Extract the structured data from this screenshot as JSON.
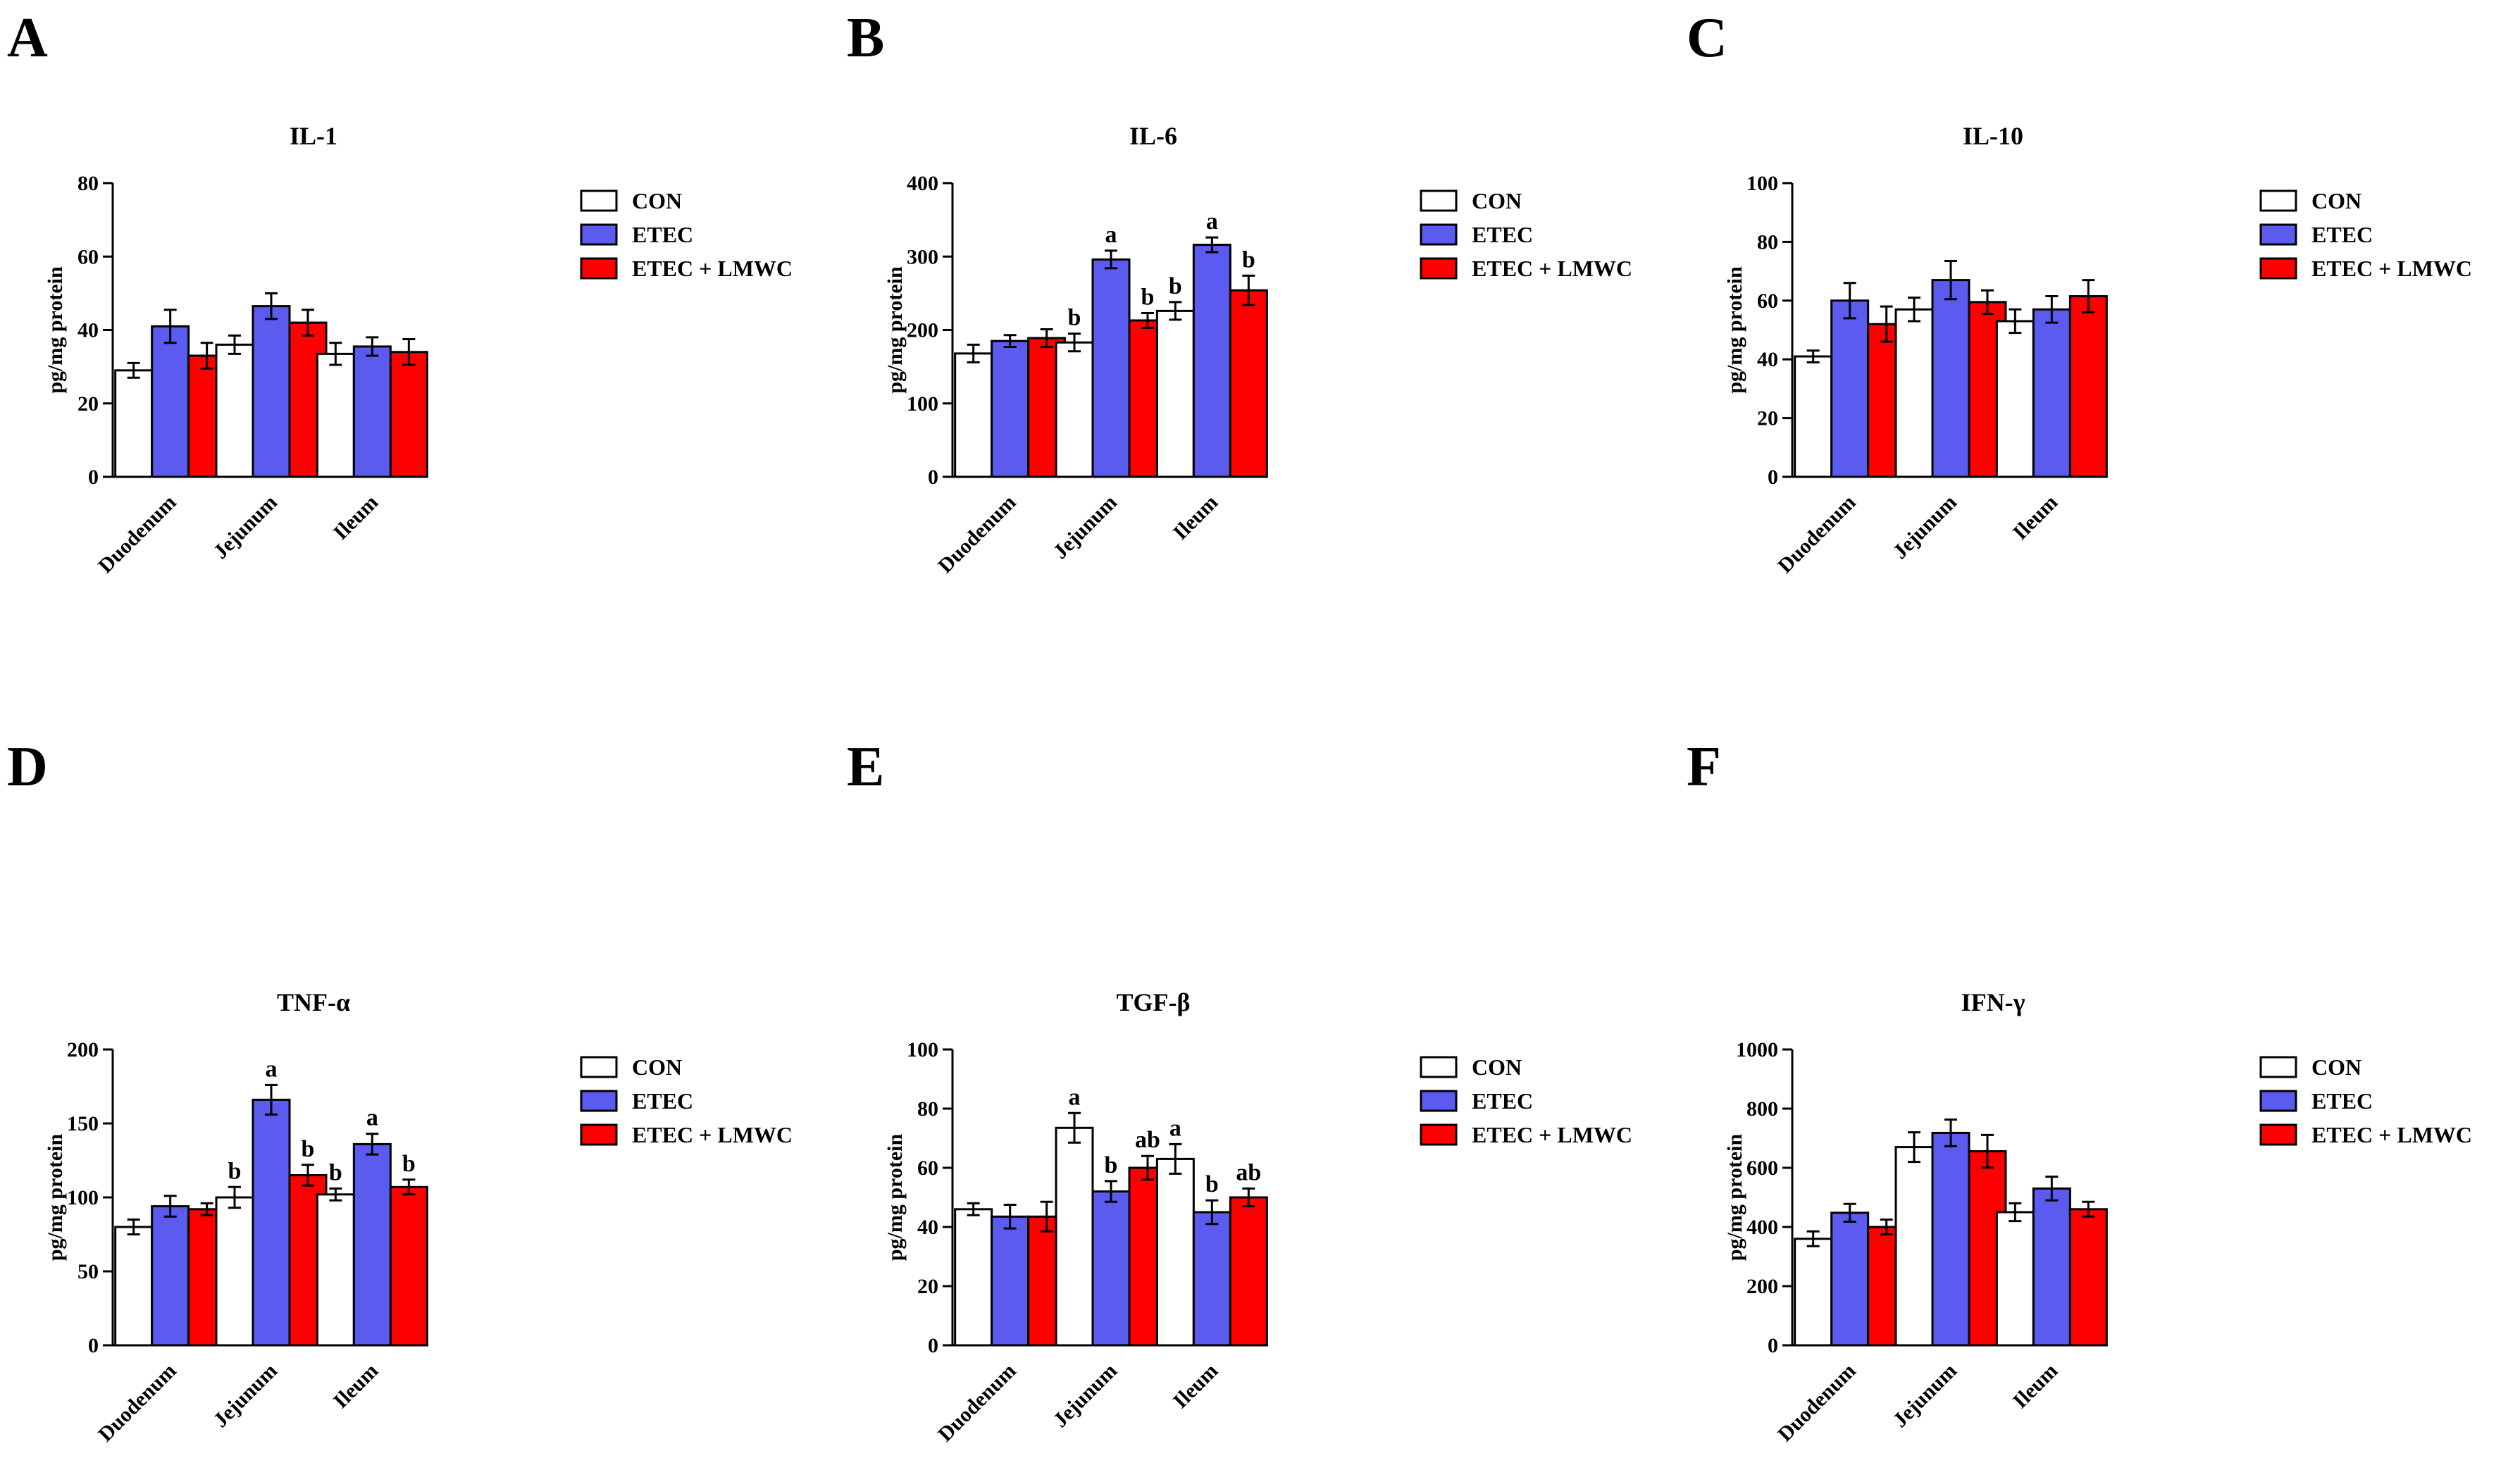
{
  "panels": [
    {
      "letter": "A"
    },
    {
      "letter": "B"
    },
    {
      "letter": "C"
    },
    {
      "letter": "D"
    },
    {
      "letter": "E"
    },
    {
      "letter": "F"
    }
  ],
  "legend": [
    "CON",
    "ETEC",
    "ETEC + LMWC"
  ],
  "colors": {
    "CON": "#ffffff",
    "ETEC": "#5b5bf0",
    "ETEC + LMWC": "#ff0000",
    "stroke": "#000000"
  },
  "chart_data": [
    {
      "type": "bar",
      "title": "IL-1",
      "ylabel": "pg/mg protein",
      "categories": [
        "Duodenum",
        "Jejunum",
        "Ileum"
      ],
      "ylim": [
        0,
        80
      ],
      "yticks": [
        0,
        20,
        40,
        60,
        80
      ],
      "series": [
        {
          "name": "CON",
          "values": [
            29,
            36,
            33.5
          ],
          "errors": [
            2,
            2.5,
            3
          ],
          "labels": [
            "",
            "",
            ""
          ]
        },
        {
          "name": "ETEC",
          "values": [
            41,
            46.5,
            35.5
          ],
          "errors": [
            4.5,
            3.5,
            2.5
          ],
          "labels": [
            "",
            "",
            ""
          ]
        },
        {
          "name": "ETEC + LMWC",
          "values": [
            33,
            42,
            34
          ],
          "errors": [
            3.5,
            3.5,
            3.5
          ],
          "labels": [
            "",
            "",
            ""
          ]
        }
      ]
    },
    {
      "type": "bar",
      "title": "IL-6",
      "ylabel": "pg/mg protein",
      "categories": [
        "Duodenum",
        "Jejunum",
        "Ileum"
      ],
      "ylim": [
        0,
        400
      ],
      "yticks": [
        0,
        100,
        200,
        300,
        400
      ],
      "series": [
        {
          "name": "CON",
          "values": [
            168,
            183,
            226
          ],
          "errors": [
            12,
            12,
            12
          ],
          "labels": [
            "",
            "b",
            "b"
          ]
        },
        {
          "name": "ETEC",
          "values": [
            185,
            296,
            316
          ],
          "errors": [
            8,
            12,
            10
          ],
          "labels": [
            "",
            "a",
            "a"
          ]
        },
        {
          "name": "ETEC + LMWC",
          "values": [
            189,
            213,
            254
          ],
          "errors": [
            12,
            10,
            20
          ],
          "labels": [
            "",
            "b",
            "b"
          ]
        }
      ]
    },
    {
      "type": "bar",
      "title": "IL-10",
      "ylabel": "pg/mg protein",
      "categories": [
        "Duodenum",
        "Jejunum",
        "Ileum"
      ],
      "ylim": [
        0,
        100
      ],
      "yticks": [
        0,
        20,
        40,
        60,
        80,
        100
      ],
      "series": [
        {
          "name": "CON",
          "values": [
            41,
            57,
            53
          ],
          "errors": [
            2,
            4,
            4
          ],
          "labels": [
            "",
            "",
            ""
          ]
        },
        {
          "name": "ETEC",
          "values": [
            60,
            67,
            57
          ],
          "errors": [
            6,
            6.5,
            4.5
          ],
          "labels": [
            "",
            "",
            ""
          ]
        },
        {
          "name": "ETEC + LMWC",
          "values": [
            52,
            59.5,
            61.5
          ],
          "errors": [
            6,
            4,
            5.5
          ],
          "labels": [
            "",
            "",
            ""
          ]
        }
      ]
    },
    {
      "type": "bar",
      "title": "TNF-α",
      "ylabel": "pg/mg protein",
      "categories": [
        "Duodenum",
        "Jejunum",
        "Ileum"
      ],
      "ylim": [
        0,
        200
      ],
      "yticks": [
        0,
        50,
        100,
        150,
        200
      ],
      "series": [
        {
          "name": "CON",
          "values": [
            80,
            100,
            102
          ],
          "errors": [
            5,
            7,
            4
          ],
          "labels": [
            "",
            "b",
            "b"
          ]
        },
        {
          "name": "ETEC",
          "values": [
            94,
            166,
            136
          ],
          "errors": [
            7,
            10,
            7
          ],
          "labels": [
            "",
            "a",
            "a"
          ]
        },
        {
          "name": "ETEC + LMWC",
          "values": [
            92,
            115,
            107
          ],
          "errors": [
            4,
            7,
            5
          ],
          "labels": [
            "",
            "b",
            "b"
          ]
        }
      ]
    },
    {
      "type": "bar",
      "title": "TGF-β",
      "ylabel": "pg/mg protein",
      "categories": [
        "Duodenum",
        "Jejunum",
        "Ileum"
      ],
      "ylim": [
        0,
        100
      ],
      "yticks": [
        0,
        20,
        40,
        60,
        80,
        100
      ],
      "series": [
        {
          "name": "CON",
          "values": [
            46,
            73.5,
            63
          ],
          "errors": [
            2,
            5,
            5
          ],
          "labels": [
            "",
            "a",
            "a"
          ]
        },
        {
          "name": "ETEC",
          "values": [
            43.5,
            52,
            45
          ],
          "errors": [
            4,
            3.5,
            4
          ],
          "labels": [
            "",
            "b",
            "b"
          ]
        },
        {
          "name": "ETEC + LMWC",
          "values": [
            43.5,
            60,
            50
          ],
          "errors": [
            5,
            4,
            3
          ],
          "labels": [
            "",
            "ab",
            "ab"
          ]
        }
      ]
    },
    {
      "type": "bar",
      "title": "IFN-γ",
      "ylabel": "pg/mg protein",
      "categories": [
        "Duodenum",
        "Jejunum",
        "Ileum"
      ],
      "ylim": [
        0,
        1000
      ],
      "yticks": [
        0,
        200,
        400,
        600,
        800,
        1000
      ],
      "series": [
        {
          "name": "CON",
          "values": [
            360,
            670,
            450
          ],
          "errors": [
            25,
            50,
            30
          ],
          "labels": [
            "",
            "",
            ""
          ]
        },
        {
          "name": "ETEC",
          "values": [
            448,
            718,
            530
          ],
          "errors": [
            30,
            45,
            40
          ],
          "labels": [
            "",
            "",
            ""
          ]
        },
        {
          "name": "ETEC + LMWC",
          "values": [
            400,
            656,
            460
          ],
          "errors": [
            25,
            55,
            25
          ],
          "labels": [
            "",
            "",
            ""
          ]
        }
      ]
    }
  ]
}
